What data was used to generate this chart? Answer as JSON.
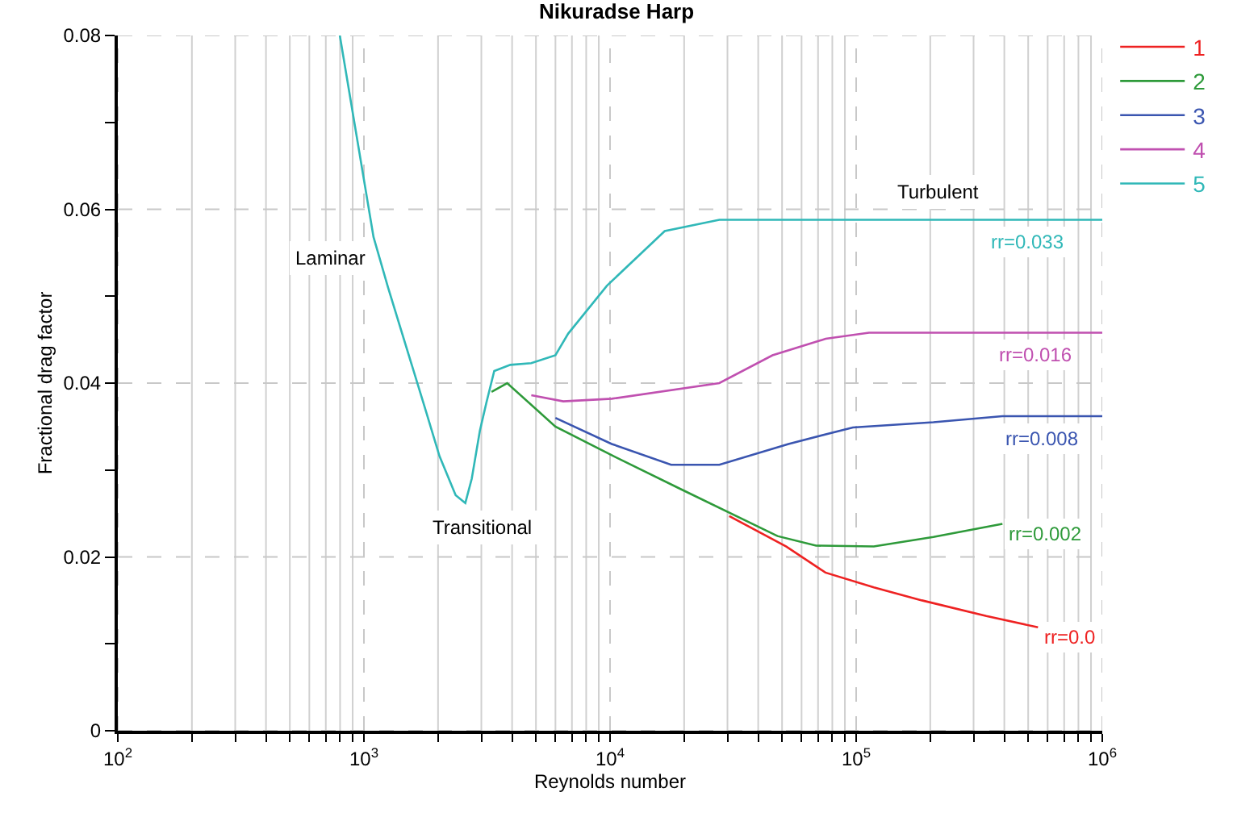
{
  "chart_data": {
    "type": "line",
    "title": "Nikuradse Harp",
    "xlabel": "Reynolds number",
    "ylabel": "Fractional drag factor",
    "log": "x",
    "grid": true,
    "legend": "top right",
    "marker": "none",
    "line_style": "solid",
    "xlim": [
      100,
      1000000
    ],
    "xticks": [
      {
        "value": 100,
        "label": "10$^{2}$"
      },
      {
        "value": 200,
        "label": null
      },
      {
        "value": 300,
        "label": null
      },
      {
        "value": 400,
        "label": null
      },
      {
        "value": 500,
        "label": null
      },
      {
        "value": 600,
        "label": null
      },
      {
        "value": 700,
        "label": null
      },
      {
        "value": 800,
        "label": null
      },
      {
        "value": 900,
        "label": null
      },
      {
        "value": 1000,
        "label": "10$^{3}$"
      },
      {
        "value": 2000,
        "label": null
      },
      {
        "value": 3000,
        "label": null
      },
      {
        "value": 4000,
        "label": null
      },
      {
        "value": 5000,
        "label": null
      },
      {
        "value": 6000,
        "label": null
      },
      {
        "value": 7000,
        "label": null
      },
      {
        "value": 8000,
        "label": null
      },
      {
        "value": 9000,
        "label": null
      },
      {
        "value": 10000,
        "label": "10$^{4}$"
      },
      {
        "value": 20000,
        "label": null
      },
      {
        "value": 30000,
        "label": null
      },
      {
        "value": 40000,
        "label": null
      },
      {
        "value": 50000,
        "label": null
      },
      {
        "value": 60000,
        "label": null
      },
      {
        "value": 70000,
        "label": null
      },
      {
        "value": 80000,
        "label": null
      },
      {
        "value": 90000,
        "label": null
      },
      {
        "value": 100000,
        "label": "10$^{5}$"
      },
      {
        "value": 200000,
        "label": null
      },
      {
        "value": 300000,
        "label": null
      },
      {
        "value": 400000,
        "label": null
      },
      {
        "value": 500000,
        "label": null
      },
      {
        "value": 600000,
        "label": null
      },
      {
        "value": 700000,
        "label": null
      },
      {
        "value": 800000,
        "label": null
      },
      {
        "value": 900000,
        "label": null
      },
      {
        "value": 1000000,
        "label": "10$^{6}$"
      }
    ],
    "ylim": [
      0,
      0.08
    ],
    "yticks": [
      0,
      {
        "value": 0.01,
        "label": null
      },
      0.02,
      {
        "value": 0.03,
        "label": null
      },
      0.04,
      {
        "value": 0.05,
        "label": null
      },
      0.06,
      {
        "value": 0.07,
        "label": null
      },
      0.08
    ],
    "series": [
      {
        "name": "1",
        "color": "#ee2222",
        "x": [
          30500,
          52000,
          75000,
          118000,
          185000,
          338000,
          548000
        ],
        "values": [
          0.0247,
          0.0212,
          0.0182,
          0.0165,
          0.015,
          0.0132,
          0.0119
        ]
      },
      {
        "name": "2",
        "color": "#2e9a3a",
        "x": [
          3300,
          3819,
          5998,
          10160,
          19400,
          47900,
          68700,
          118000,
          206000,
          393000
        ],
        "values": [
          0.039,
          0.04,
          0.035,
          0.0317,
          0.0278,
          0.0224,
          0.0213,
          0.0212,
          0.0223,
          0.0238
        ]
      },
      {
        "name": "3",
        "color": "#3a55b0",
        "x": [
          5998,
          10160,
          17700,
          27800,
          53100,
          97000,
          206000,
          393000,
          1000000
        ],
        "values": [
          0.036,
          0.033,
          0.0306,
          0.0306,
          0.033,
          0.0349,
          0.0355,
          0.0362,
          0.0362
        ]
      },
      {
        "name": "4",
        "color": "#c050b0",
        "x": [
          4786,
          6457,
          10160,
          27800,
          45700,
          75200,
          112800,
          1000000
        ],
        "values": [
          0.0386,
          0.0379,
          0.0382,
          0.04,
          0.0432,
          0.0451,
          0.0458,
          0.0458
        ]
      },
      {
        "name": "5",
        "color": "#30b8b8",
        "x": [
          798,
          1094,
          1253,
          1746,
          2028,
          2359,
          2582,
          2742,
          2958,
          3142,
          3384,
          3934,
          4786,
          5998,
          6761,
          9705,
          16680,
          27800,
          1000000
        ],
        "values": [
          0.08,
          0.0568,
          0.051,
          0.0377,
          0.0316,
          0.0271,
          0.0262,
          0.029,
          0.0345,
          0.0377,
          0.0414,
          0.0421,
          0.0423,
          0.0432,
          0.0457,
          0.0512,
          0.0575,
          0.0588,
          0.0588
        ]
      }
    ],
    "annotations": [
      "Laminar",
      "Transitional",
      "Turbulent",
      {
        "text": "rr=0.033",
        "x": 492000,
        "y": 0.0588
      },
      {
        "text": "rr=0.016",
        "x": 531000,
        "y": 0.0458
      },
      {
        "text": "rr=0.008",
        "x": 565000,
        "y": 0.0362
      },
      {
        "text": "rr=0.002",
        "x": 393000,
        "y": 0.0238
      },
      {
        "text": "rr=0.0",
        "x": 548000,
        "y": 0.0119
      }
    ]
  }
}
